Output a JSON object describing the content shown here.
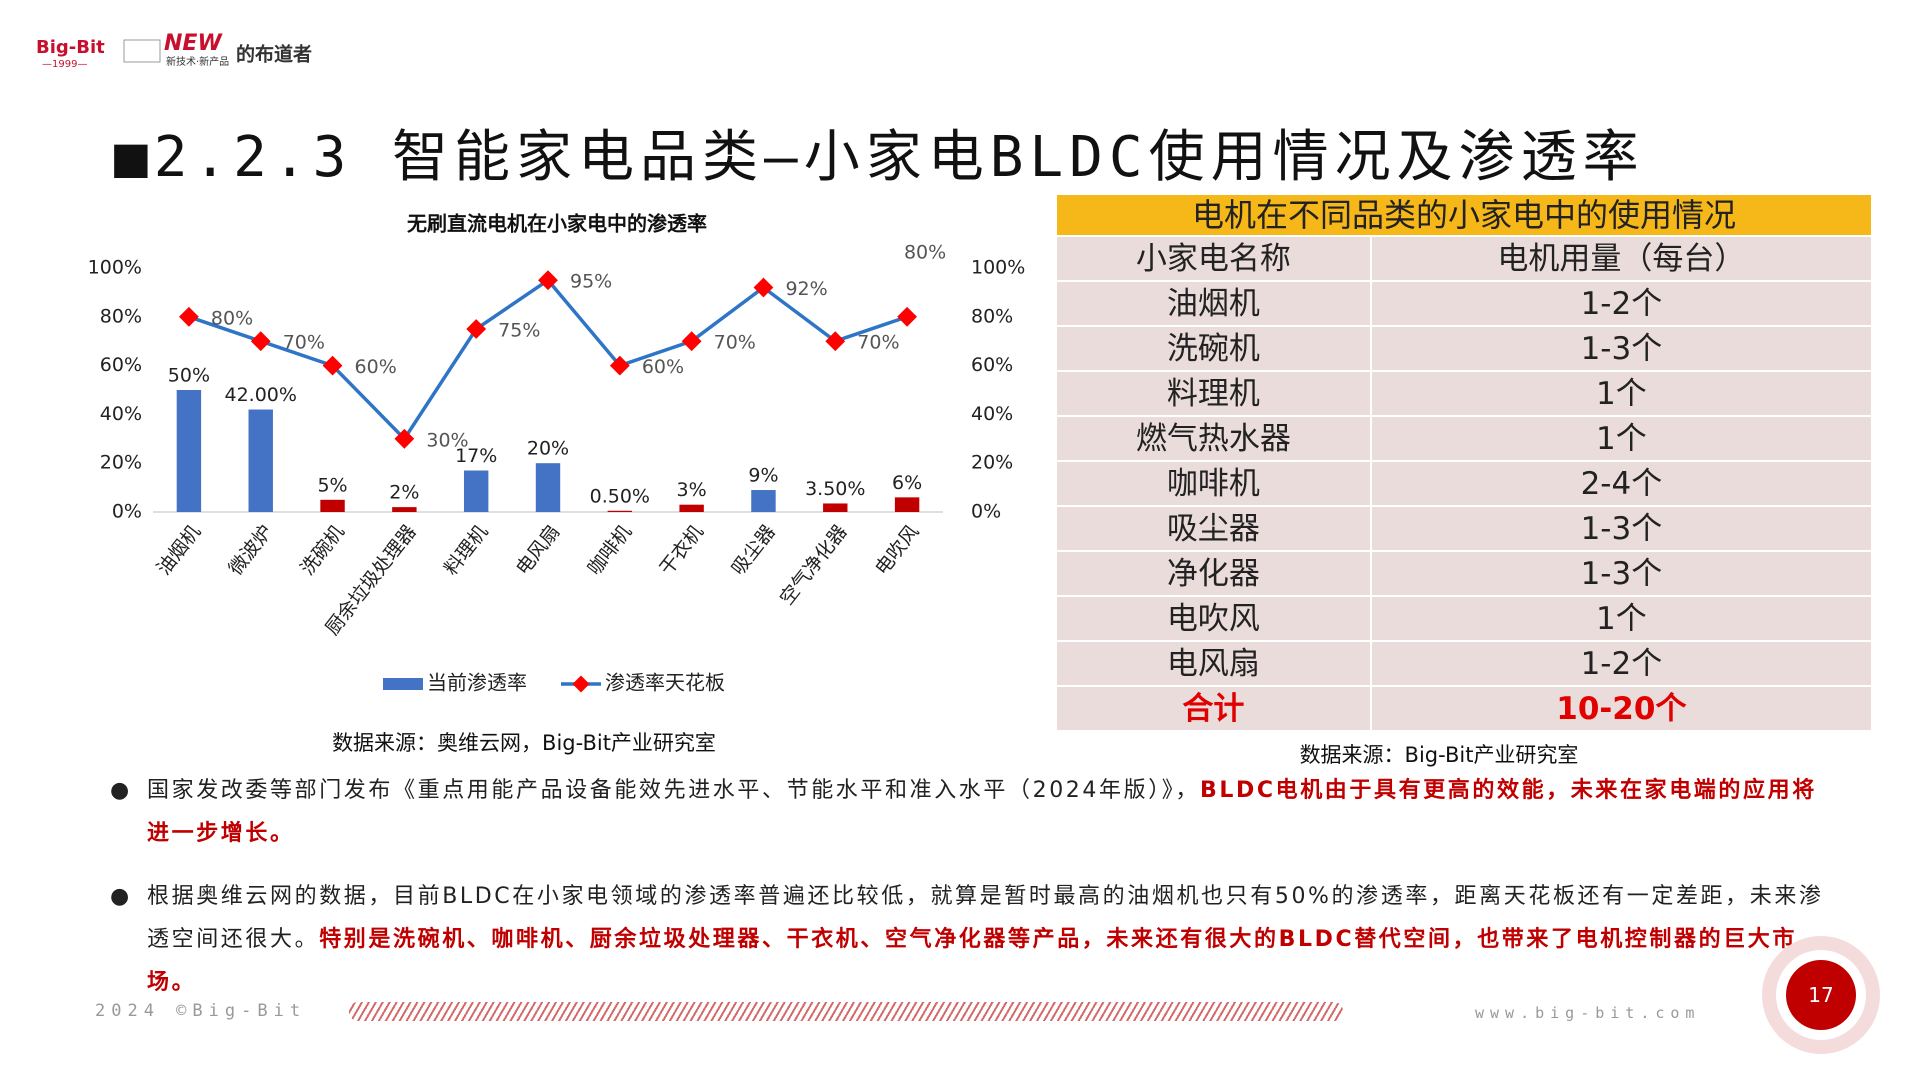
{
  "logo": {
    "brand": "Big-Bit",
    "year": "—1999—",
    "new": "NEW",
    "tagline": "新技术·新产品",
    "suffix": "的布道者"
  },
  "title": "■2.2.3 智能家电品类—小家电BLDC使用情况及渗透率",
  "chart_data": {
    "type": "combo",
    "title": "无刷直流电机在小家电中的渗透率",
    "categories": [
      "油烟机",
      "微波炉",
      "洗碗机",
      "厨余垃圾处理器",
      "料理机",
      "电风扇",
      "咖啡机",
      "干衣机",
      "吸尘器",
      "空气净化器",
      "电吹风"
    ],
    "series": [
      {
        "name": "当前渗透率",
        "type": "bar",
        "color": "#4472c4",
        "colors": [
          "#4472c4",
          "#4472c4",
          "#c00000",
          "#c00000",
          "#4472c4",
          "#4472c4",
          "#c00000",
          "#c00000",
          "#4472c4",
          "#c00000",
          "#c00000"
        ],
        "values": [
          50,
          42,
          5,
          2,
          17,
          20,
          0.5,
          3,
          9,
          3.5,
          6
        ],
        "value_labels": [
          "50%",
          "42.00%",
          "5%",
          "2%",
          "17%",
          "20%",
          "0.50%",
          "3%",
          "9%",
          "3.50%",
          "6%"
        ]
      },
      {
        "name": "渗透率天花板",
        "type": "line",
        "axis": "y2",
        "color": "#2e75c6",
        "marker_color": "#ff0000",
        "values": [
          80,
          70,
          60,
          30,
          75,
          95,
          60,
          70,
          92,
          70,
          80
        ],
        "value_labels": [
          "80%",
          "70%",
          "60%",
          "30%",
          "75%",
          "95%",
          "60%",
          "70%",
          "92%",
          "70%",
          "80%"
        ]
      }
    ],
    "ylim": [
      0,
      100
    ],
    "yticks": [
      {
        "value": 0,
        "label": "0%"
      },
      {
        "value": 20,
        "label": "20%"
      },
      {
        "value": 40,
        "label": "40%"
      },
      {
        "value": 60,
        "label": "60%"
      },
      {
        "value": 80,
        "label": "80%"
      },
      {
        "value": 100,
        "label": "100%"
      }
    ],
    "y2lim": [
      0,
      100
    ],
    "y2ticks": [
      {
        "value": 0,
        "label": "0%"
      },
      {
        "value": 20,
        "label": "20%"
      },
      {
        "value": 40,
        "label": "40%"
      },
      {
        "value": 60,
        "label": "60%"
      },
      {
        "value": 80,
        "label": "80%"
      },
      {
        "value": 100,
        "label": "100%"
      }
    ],
    "legend": "bottom",
    "source": "数据来源：奥维云网，Big-Bit产业研究室"
  },
  "table": {
    "title": "电机在不同品类的小家电中的使用情况",
    "columns": [
      "小家电名称",
      "电机用量（每台）"
    ],
    "rows": [
      [
        "油烟机",
        "1-2个"
      ],
      [
        "洗碗机",
        "1-3个"
      ],
      [
        "料理机",
        "1个"
      ],
      [
        "燃气热水器",
        "1个"
      ],
      [
        "咖啡机",
        "2-4个"
      ],
      [
        "吸尘器",
        "1-3个"
      ],
      [
        "净化器",
        "1-3个"
      ],
      [
        "电吹风",
        "1个"
      ],
      [
        "电风扇",
        "1-2个"
      ]
    ],
    "total": [
      "合计",
      "10-20个"
    ],
    "source": "数据来源：Big-Bit产业研究室"
  },
  "bullets": [
    {
      "text": "国家发改委等部门发布《重点用能产品设备能效先进水平、节能水平和准入水平（2024年版）》，",
      "highlight": "BLDC电机由于具有更高的效能，未来在家电端的应用将进一步增长。"
    },
    {
      "text": "根据奥维云网的数据，目前BLDC在小家电领域的渗透率普遍还比较低，就算是暂时最高的油烟机也只有50%的渗透率，距离天花板还有一定差距，未来渗透空间还很大。",
      "highlight": "特别是洗碗机、咖啡机、厨余垃圾处理器、干衣机、空气净化器等产品，未来还有很大的BLDC替代空间，也带来了电机控制器的巨大市场。"
    }
  ],
  "footer": {
    "copyright": "2024 ©Big-Bit",
    "url": "www.big-bit.com",
    "page_number": 17
  }
}
